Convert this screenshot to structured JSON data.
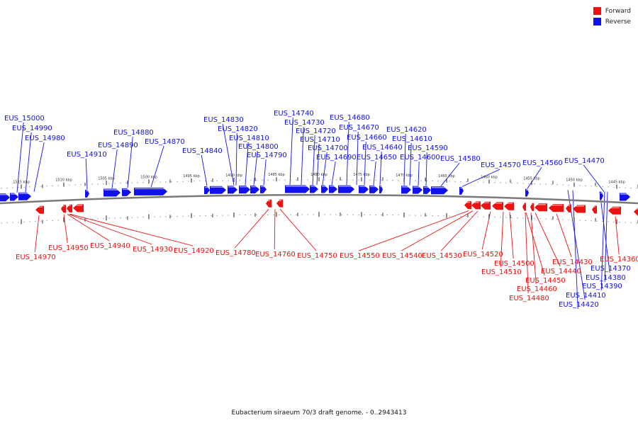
{
  "colors": {
    "forward": "#ee1111",
    "reverse": "#1111ee",
    "backbone": "#7a7a7a"
  },
  "legend": {
    "forward": "Forward",
    "reverse": "Reverse"
  },
  "caption": "Eubacterium siraeum 70/3 draft genome. - 0..2943413",
  "scale_labels": [
    "1515 kbp",
    "1510 kbp",
    "1505 kbp",
    "1500 kbp",
    "1495 kbp",
    "1490 kbp",
    "1485 kbp",
    "1480 kbp",
    "1475 kbp",
    "1470 kbp",
    "1465 kbp",
    "1460 kbp",
    "1455 kbp",
    "1450 kbp",
    "1445 kbp"
  ],
  "reverse_labels": [
    "EUS_15000",
    "EUS_14990",
    "EUS_14980",
    "EUS_14910",
    "EUS_14890",
    "EUS_14880",
    "EUS_14870",
    "EUS_14840",
    "EUS_14830",
    "EUS_14820",
    "EUS_14810",
    "EUS_14800",
    "EUS_14790",
    "EUS_14740",
    "EUS_14730",
    "EUS_14720",
    "EUS_14710",
    "EUS_14700",
    "EUS_14690",
    "EUS_14680",
    "EUS_14670",
    "EUS_14660",
    "EUS_14650",
    "EUS_14640",
    "EUS_14620",
    "EUS_14610",
    "EUS_14600",
    "EUS_14590",
    "EUS_14580",
    "EUS_14570",
    "EUS_14560",
    "EUS_14470",
    "EUS_14420",
    "EUS_14410",
    "EUS_14390",
    "EUS_14380",
    "EUS_14370"
  ],
  "forward_labels": [
    "EUS_14970",
    "EUS_14950",
    "EUS_14940",
    "EUS_14930",
    "EUS_14920",
    "EUS_14780",
    "EUS_14760",
    "EUS_14750",
    "EUS_14550",
    "EUS_14540",
    "EUS_14530",
    "EUS_14520",
    "EUS_14510",
    "EUS_14500",
    "EUS_14450",
    "EUS_14440",
    "EUS_14460",
    "EUS_14480",
    "EUS_14430",
    "EUS_14360"
  ]
}
